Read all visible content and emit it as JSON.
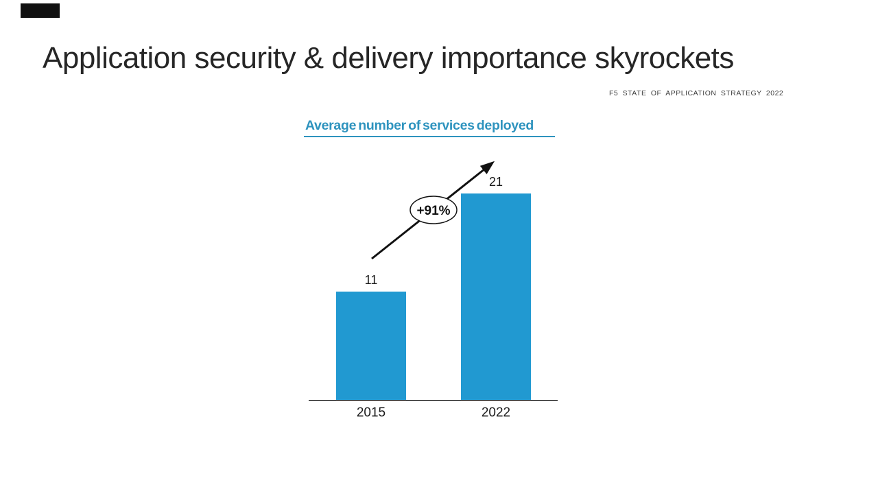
{
  "title": "Application security & delivery importance skyrockets",
  "source": "F5 STATE OF APPLICATION STRATEGY 2022",
  "colors": {
    "bar": "#2199D1",
    "chart_title": "#2E93BE",
    "title_text": "#262626",
    "logo_block": "#111111",
    "annotation_stroke": "#111111"
  },
  "chart_data": {
    "type": "bar",
    "title": "Average number of services deployed",
    "categories": [
      "2015",
      "2022"
    ],
    "values": [
      11,
      21
    ],
    "series": [
      {
        "name": "Average number of services deployed",
        "values": [
          11,
          21
        ]
      }
    ],
    "annotation": {
      "label": "+91%",
      "shape": "oval",
      "arrow": true
    },
    "xlabel": "",
    "ylabel": "",
    "ylim": [
      0,
      21
    ],
    "grid": false,
    "legend": "none",
    "bar_color": "#2199D1",
    "pixel_scale": 14.35,
    "axis_baseline_y": 583
  }
}
